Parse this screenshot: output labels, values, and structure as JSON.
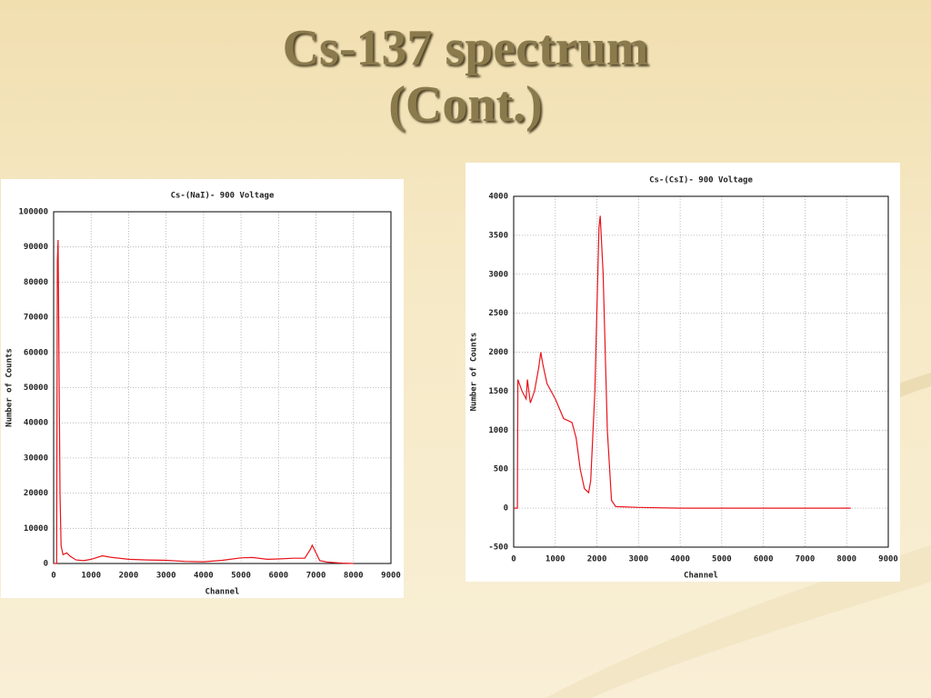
{
  "slide": {
    "title_lines": [
      "Cs-137 spectrum",
      "(Cont.)"
    ]
  },
  "chart_data": [
    {
      "type": "line",
      "title": "Cs-(NaI)-  900 Voltage",
      "x_label": "Channel",
      "y_label": "Number of Counts",
      "xlim": [
        0,
        9000
      ],
      "xticks": [
        0,
        1000,
        2000,
        3000,
        4000,
        5000,
        6000,
        7000,
        8000,
        9000
      ],
      "ylim": [
        0,
        100000
      ],
      "yticks": [
        0,
        10000,
        20000,
        30000,
        40000,
        50000,
        60000,
        70000,
        80000,
        90000,
        100000
      ],
      "grid": true,
      "x": [
        0,
        80,
        100,
        120,
        140,
        170,
        200,
        250,
        350,
        450,
        600,
        800,
        1000,
        1300,
        1500,
        2000,
        2500,
        3000,
        3500,
        4000,
        4500,
        5000,
        5300,
        5700,
        6000,
        6400,
        6700,
        6850,
        6900,
        7000,
        7100,
        7300,
        7700,
        8000
      ],
      "series": [
        {
          "color": "#e8141b",
          "values": [
            0,
            0,
            86000,
            92000,
            60000,
            20000,
            5000,
            2500,
            3000,
            2000,
            1000,
            800,
            1200,
            2200,
            1800,
            1200,
            1000,
            900,
            600,
            500,
            900,
            1600,
            1700,
            1200,
            1300,
            1500,
            1500,
            4000,
            5200,
            3000,
            800,
            400,
            100,
            0
          ]
        }
      ]
    },
    {
      "type": "line",
      "title": "Cs-(CsI)-  900 Voltage",
      "x_label": "Channel",
      "y_label": "Number of Counts",
      "xlim": [
        0,
        9000
      ],
      "xticks": [
        0,
        1000,
        2000,
        3000,
        4000,
        5000,
        6000,
        7000,
        8000,
        9000
      ],
      "ylim": [
        -500,
        4000
      ],
      "yticks": [
        -500,
        0,
        500,
        1000,
        1500,
        2000,
        2500,
        3000,
        3500,
        4000
      ],
      "grid": true,
      "x": [
        0,
        90,
        100,
        200,
        300,
        330,
        400,
        500,
        600,
        650,
        700,
        800,
        1000,
        1200,
        1400,
        1500,
        1600,
        1700,
        1800,
        1850,
        1950,
        2050,
        2080,
        2150,
        2250,
        2350,
        2450,
        3000,
        4000,
        6000,
        8100
      ],
      "series": [
        {
          "color": "#e8141b",
          "values": [
            0,
            0,
            1650,
            1500,
            1400,
            1650,
            1350,
            1500,
            1800,
            2000,
            1850,
            1600,
            1400,
            1150,
            1100,
            900,
            500,
            250,
            200,
            350,
            1500,
            3600,
            3750,
            3000,
            1000,
            100,
            20,
            10,
            0,
            0,
            0
          ]
        }
      ]
    }
  ]
}
